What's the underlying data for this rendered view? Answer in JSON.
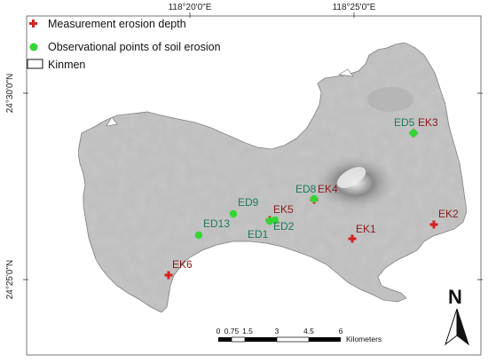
{
  "colors": {
    "land": "#bdbdbd",
    "land_stroke": "#6e6e6e",
    "ek_marker": "#d62020",
    "ed_marker": "#33d633",
    "ek_label": "#8b1a1a",
    "ed_label": "#1f7a5a",
    "frame": "#555555"
  },
  "legend": {
    "measurement": "Measurement erosion depth",
    "observational": "Observational points of soil erosion",
    "kinmen": "Kinmen"
  },
  "graticule": {
    "lon": [
      "118°20'0\"E",
      "118°25'0\"E"
    ],
    "lat": [
      "24°30'0\"N",
      "24°25'0\"N"
    ]
  },
  "measurement_points": [
    {
      "label": "EK1"
    },
    {
      "label": "EK2"
    },
    {
      "label": "EK3"
    },
    {
      "label": "EK4"
    },
    {
      "label": "EK5"
    },
    {
      "label": "EK6"
    }
  ],
  "observation_points": [
    {
      "label": "ED1"
    },
    {
      "label": "ED2"
    },
    {
      "label": "ED5"
    },
    {
      "label": "ED8"
    },
    {
      "label": "ED9"
    },
    {
      "label": "ED13"
    }
  ],
  "scale_bar": {
    "ticks": [
      "0",
      "0.75",
      "1.5",
      "3",
      "4.5",
      "6"
    ],
    "unit": "Kilometers"
  },
  "north_arrow": {
    "label": "N"
  }
}
